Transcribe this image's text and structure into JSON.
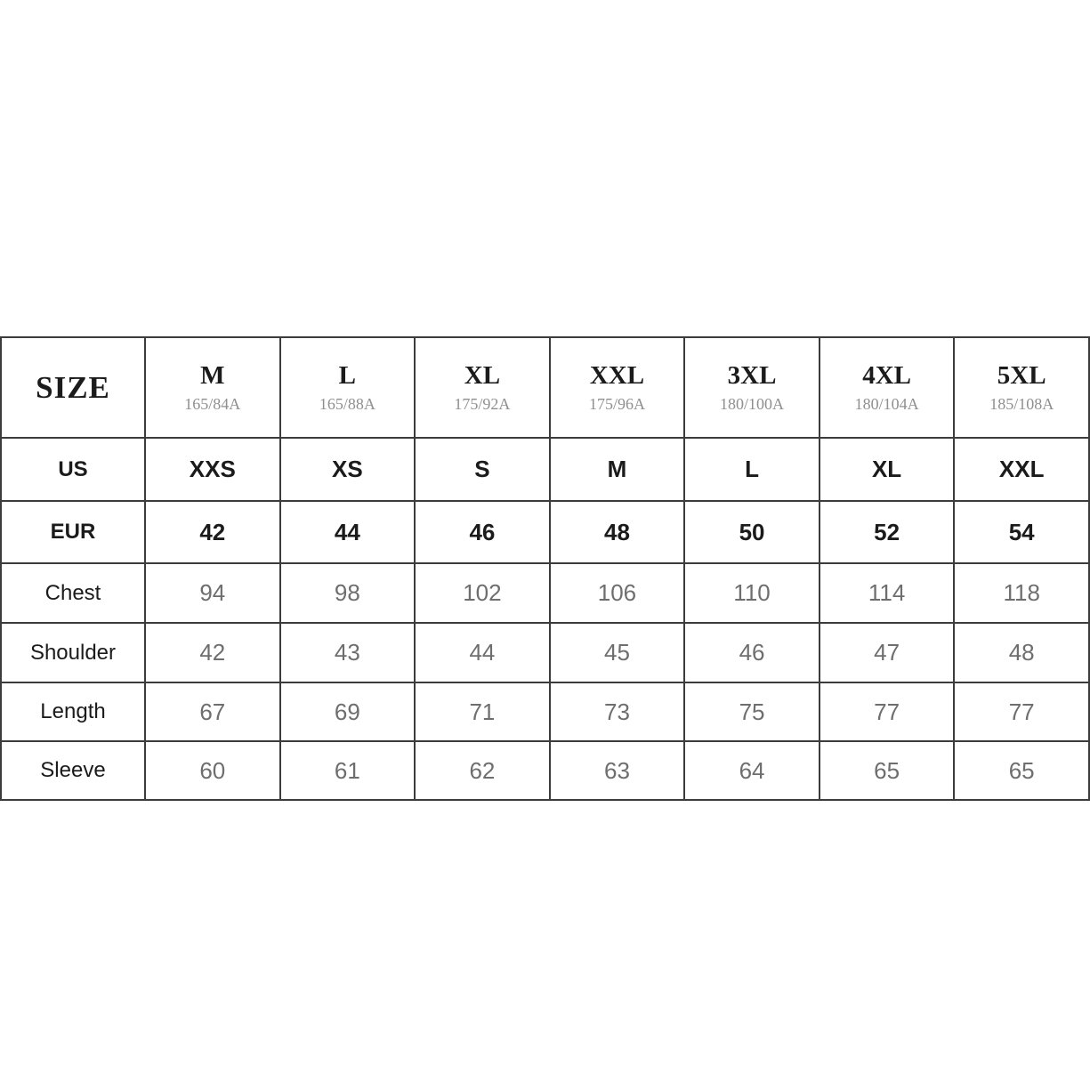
{
  "colors": {
    "border-color": "#3c3c3c",
    "text-dark": "#1b1b1b",
    "text-muted": "#6e6e6e",
    "text-spec": "#8f8f8f",
    "bg": "#ffffff"
  },
  "chart_data": {
    "type": "table",
    "corner_label": "SIZE",
    "size_columns": [
      {
        "size": "M",
        "height_spec": "165/84A"
      },
      {
        "size": "L",
        "height_spec": "165/88A"
      },
      {
        "size": "XL",
        "height_spec": "175/92A"
      },
      {
        "size": "XXL",
        "height_spec": "175/96A"
      },
      {
        "size": "3XL",
        "height_spec": "180/100A"
      },
      {
        "size": "4XL",
        "height_spec": "180/104A"
      },
      {
        "size": "5XL",
        "height_spec": "185/108A"
      }
    ],
    "rows": [
      {
        "label": "US",
        "style": "bold",
        "values": [
          "XXS",
          "XS",
          "S",
          "M",
          "L",
          "XL",
          "XXL"
        ]
      },
      {
        "label": "EUR",
        "style": "bold",
        "values": [
          "42",
          "44",
          "46",
          "48",
          "50",
          "52",
          "54"
        ]
      },
      {
        "label": "Chest",
        "style": "muted",
        "values": [
          "94",
          "98",
          "102",
          "106",
          "110",
          "114",
          "118"
        ]
      },
      {
        "label": "Shoulder",
        "style": "muted",
        "values": [
          "42",
          "43",
          "44",
          "45",
          "46",
          "47",
          "48"
        ]
      },
      {
        "label": "Length",
        "style": "muted",
        "values": [
          "67",
          "69",
          "71",
          "73",
          "75",
          "77",
          "77"
        ]
      },
      {
        "label": "Sleeve",
        "style": "muted",
        "values": [
          "60",
          "61",
          "62",
          "63",
          "64",
          "65",
          "65"
        ]
      }
    ]
  }
}
